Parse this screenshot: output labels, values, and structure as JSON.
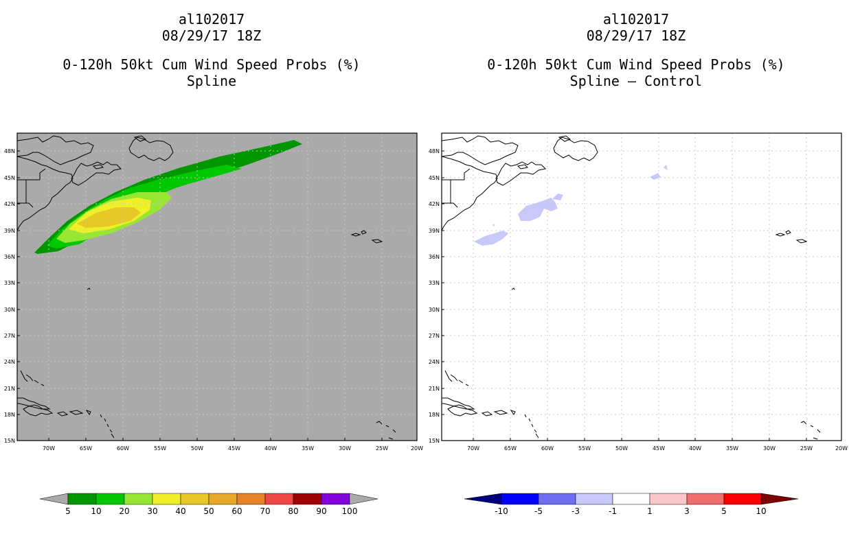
{
  "left_panel": {
    "title_lines": [
      "al102017",
      "08/29/17 18Z",
      "0-120h 50kt Cum Wind Speed Probs (%)",
      "Spline"
    ],
    "background": "#aaaaaa",
    "colorbar": {
      "labels": [
        "5",
        "10",
        "20",
        "30",
        "40",
        "50",
        "60",
        "70",
        "80",
        "90",
        "100"
      ],
      "colors": [
        "#009600",
        "#00c800",
        "#96e632",
        "#f0f028",
        "#e6c828",
        "#e6aa28",
        "#e68228",
        "#f04646",
        "#a00000",
        "#8200dc"
      ],
      "extend_low_color": "#aaaaaa",
      "extend_high_color": "#aaaaaa"
    }
  },
  "right_panel": {
    "title_lines": [
      "al102017",
      "08/29/17 18Z",
      "0-120h 50kt Cum Wind Speed Probs (%)",
      "Spline – Control"
    ],
    "background": "#ffffff",
    "colorbar": {
      "labels": [
        "-10",
        "-5",
        "-3",
        "-1",
        "1",
        "3",
        "5",
        "10"
      ],
      "colors": [
        "#0000fa",
        "#6e6ef0",
        "#c8c8fa",
        "#ffffff",
        "#fac8c8",
        "#f06e6e",
        "#fa0000"
      ],
      "extend_low_color": "#00007d",
      "extend_high_color": "#7d0000"
    }
  },
  "axes": {
    "lat_labels": [
      "48N",
      "45N",
      "42N",
      "39N",
      "36N",
      "33N",
      "30N",
      "27N",
      "24N",
      "21N",
      "18N",
      "15N"
    ],
    "lon_labels": [
      "70W",
      "65W",
      "60W",
      "55W",
      "50W",
      "45W",
      "40W",
      "35W",
      "30W",
      "25W",
      "20W"
    ]
  }
}
